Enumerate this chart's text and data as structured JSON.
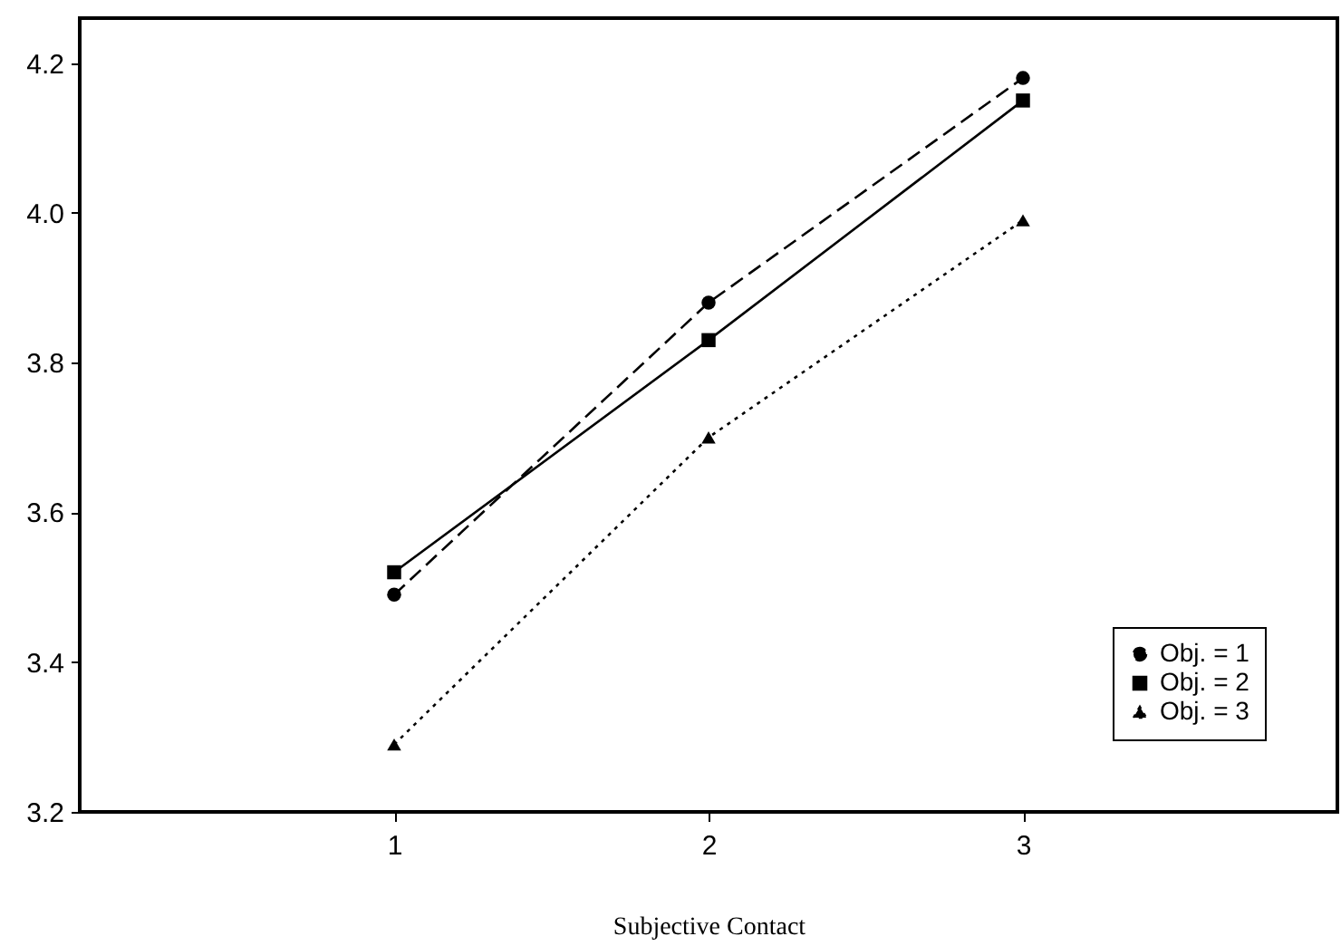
{
  "chart_data": {
    "type": "line",
    "xlabel": "Subjective Contact",
    "x": [
      1,
      2,
      3
    ],
    "xlim": [
      0,
      4
    ],
    "xticks": [
      1,
      2,
      3
    ],
    "ylim": [
      3.2,
      4.26
    ],
    "yticks": [
      {
        "value": 3.2,
        "label": "3.2"
      },
      {
        "value": 3.4,
        "label": "3.4"
      },
      {
        "value": 3.6,
        "label": "3.6"
      },
      {
        "value": 3.8,
        "label": "3.8"
      },
      {
        "value": 4.0,
        "label": "4.0"
      },
      {
        "value": 4.2,
        "label": "4.2"
      }
    ],
    "grid": false,
    "legend": "bottom right",
    "series": [
      {
        "name": "Obj. = 1",
        "color": "#000000",
        "marker": "circle",
        "line_style": "dashed",
        "values": [
          3.49,
          3.88,
          4.18
        ]
      },
      {
        "name": "Obj. = 2",
        "color": "#000000",
        "marker": "square",
        "line_style": "solid",
        "values": [
          3.52,
          3.83,
          4.15
        ]
      },
      {
        "name": "Obj. = 3",
        "color": "#000000",
        "marker": "triangle",
        "line_style": "dotted",
        "values": [
          3.29,
          3.7,
          3.99
        ]
      }
    ]
  }
}
